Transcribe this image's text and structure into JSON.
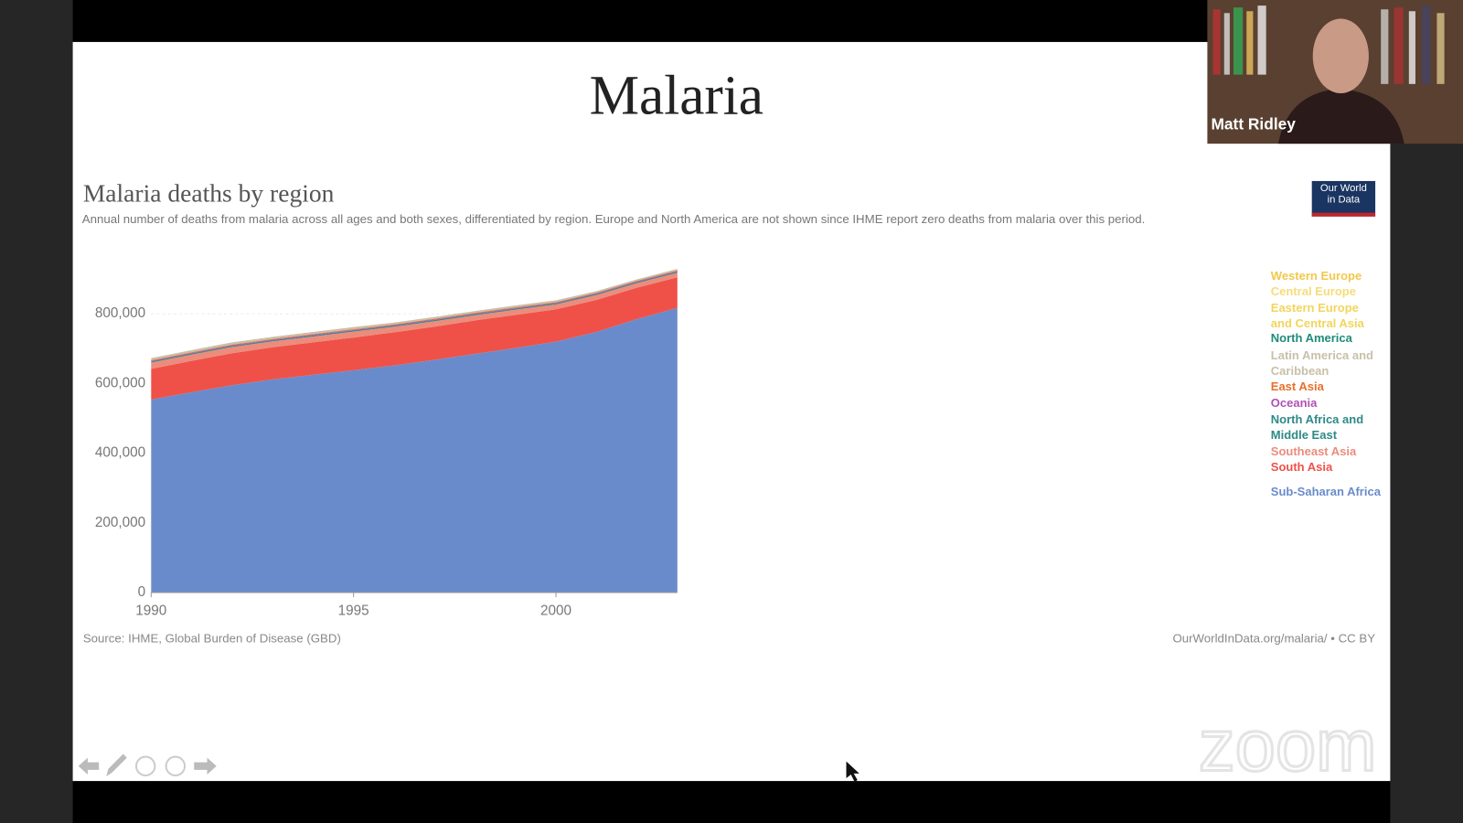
{
  "slide_title": "Malaria",
  "participant_name": "Matt Ridley",
  "watermark": "zoom",
  "chart_data": {
    "type": "stacked-area",
    "title": "Malaria deaths by region",
    "subtitle": "Annual number of deaths from malaria across all ages and both sexes, differentiated by region. Europe and North America are not shown since IHME report zero deaths from malaria over this period.",
    "source": "Source: IHME, Global Burden of Disease (GBD)",
    "credit": "OurWorldInData.org/malaria/ • CC BY",
    "logo": "Our World in Data",
    "x": [
      1990,
      1991,
      1992,
      1993,
      1994,
      1995,
      1996,
      1997,
      1998,
      1999,
      2000,
      2001,
      2002,
      2003
    ],
    "xlim": [
      1990,
      2003
    ],
    "xticks": [
      1990,
      1995,
      2000
    ],
    "ylim": [
      0,
      900000
    ],
    "yticks": [
      0,
      {
        "value": 200000,
        "label": "200,000"
      },
      {
        "value": 400000,
        "label": "400,000"
      },
      {
        "value": 600000,
        "label": "600,000"
      },
      {
        "value": 800000,
        "label": "800,000"
      }
    ],
    "series": [
      {
        "name": "Sub-Saharan Africa",
        "color": "#6a8bcb",
        "values": [
          554000,
          575000,
          595000,
          612000,
          625000,
          638000,
          652000,
          668000,
          685000,
          702000,
          720000,
          748000,
          785000,
          817000
        ]
      },
      {
        "name": "South Asia",
        "color": "#ef5148",
        "values": [
          88000,
          90000,
          92000,
          92000,
          93000,
          94000,
          95000,
          95000,
          96000,
          95000,
          93000,
          92000,
          90000,
          88000
        ]
      },
      {
        "name": "Southeast Asia",
        "color": "#ec8c7c",
        "values": [
          18000,
          18000,
          18000,
          17000,
          17000,
          17000,
          16000,
          16000,
          15000,
          15000,
          14000,
          14000,
          13000,
          13000
        ]
      },
      {
        "name": "North Africa and Middle East",
        "color": "#2e8a86",
        "values": [
          3000,
          3000,
          3000,
          3000,
          3000,
          3000,
          3000,
          3000,
          3000,
          3000,
          3000,
          3000,
          3000,
          3000
        ]
      },
      {
        "name": "Oceania",
        "color": "#b14fb8",
        "values": [
          2000,
          2000,
          2000,
          2000,
          2000,
          2000,
          2000,
          2000,
          2000,
          2000,
          2000,
          2000,
          2000,
          2000
        ]
      },
      {
        "name": "East Asia",
        "color": "#e8702c",
        "values": [
          2000,
          2000,
          2000,
          2000,
          2000,
          2000,
          2000,
          2000,
          2000,
          2000,
          2000,
          2000,
          2000,
          2000
        ]
      },
      {
        "name": "Latin America and Caribbean",
        "color": "#c8c0a8",
        "values": [
          6000,
          6000,
          6000,
          6000,
          6000,
          6000,
          5000,
          5000,
          5000,
          5000,
          5000,
          4000,
          4000,
          4000
        ]
      },
      {
        "name": "North America",
        "color": "#1f8c78",
        "values": [
          0,
          0,
          0,
          0,
          0,
          0,
          0,
          0,
          0,
          0,
          0,
          0,
          0,
          0
        ]
      },
      {
        "name": "Eastern Europe and Central Asia",
        "color": "#f2d55c",
        "values": [
          0,
          0,
          0,
          0,
          0,
          0,
          0,
          0,
          0,
          0,
          0,
          0,
          0,
          0
        ]
      },
      {
        "name": "Central Europe",
        "color": "#f5dd7a",
        "values": [
          0,
          0,
          0,
          0,
          0,
          0,
          0,
          0,
          0,
          0,
          0,
          0,
          0,
          0
        ]
      },
      {
        "name": "Western Europe",
        "color": "#f2c84b",
        "values": [
          0,
          0,
          0,
          0,
          0,
          0,
          0,
          0,
          0,
          0,
          0,
          0,
          0,
          0
        ]
      }
    ]
  }
}
